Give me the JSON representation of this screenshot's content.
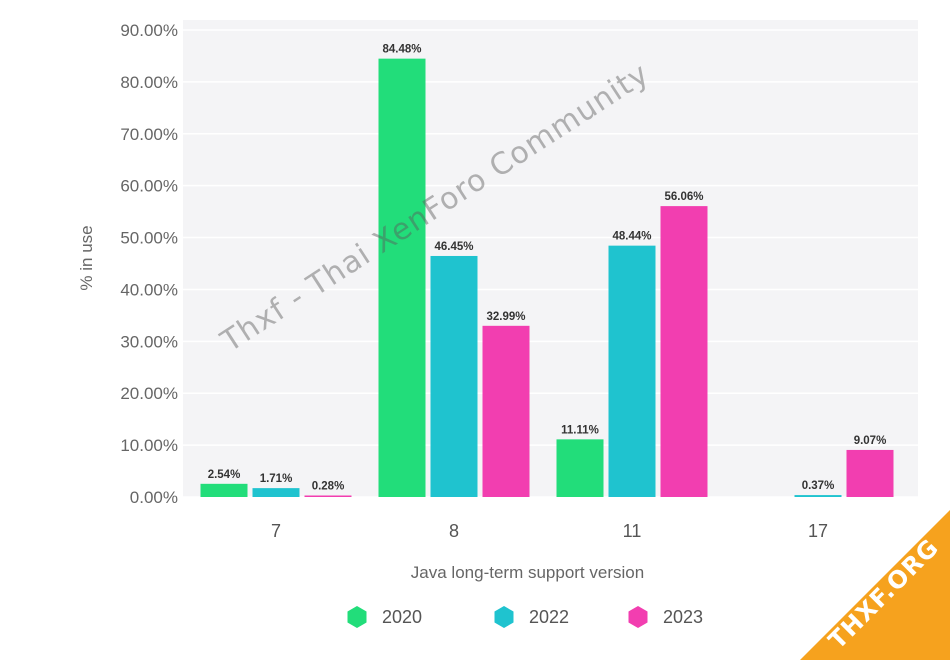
{
  "chart_data": {
    "type": "bar",
    "categories": [
      "7",
      "8",
      "11",
      "17"
    ],
    "series": [
      {
        "name": "2020",
        "color": "#22dd7a",
        "values": [
          2.54,
          84.48,
          11.11,
          null
        ],
        "labels": [
          "2.54%",
          "84.48%",
          "11.11%",
          ""
        ]
      },
      {
        "name": "2022",
        "color": "#1fc3cf",
        "values": [
          1.71,
          46.45,
          48.44,
          0.37
        ],
        "labels": [
          "1.71%",
          "46.45%",
          "48.44%",
          "0.37%"
        ]
      },
      {
        "name": "2023",
        "color": "#f23eb0",
        "values": [
          0.28,
          32.99,
          56.06,
          9.07
        ],
        "labels": [
          "0.28%",
          "32.99%",
          "56.06%",
          "9.07%"
        ]
      }
    ],
    "xlabel": "Java long-term support version",
    "ylabel": "% in use",
    "ylim": [
      0,
      90
    ],
    "yticks": [
      0,
      10,
      20,
      30,
      40,
      50,
      60,
      70,
      80,
      90
    ],
    "ytick_labels": [
      "0.00%",
      "10.00%",
      "20.00%",
      "30.00%",
      "40.00%",
      "50.00%",
      "60.00%",
      "70.00%",
      "80.00%",
      "90.00%"
    ],
    "grid": true,
    "legend_position": "bottom"
  },
  "watermark": "Thxf - Thai XenForo Community",
  "corner_badge": "THXF.ORG"
}
